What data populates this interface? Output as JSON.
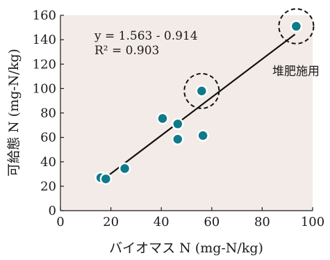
{
  "chart_data": {
    "type": "scatter",
    "title": "",
    "xlabel": "バイオマス N (mg-N/kg)",
    "ylabel": "可給態 N (mg-N/kg)",
    "xlim": [
      0,
      100
    ],
    "ylim": [
      0,
      160
    ],
    "x_ticks": [
      0,
      20,
      40,
      60,
      80,
      100
    ],
    "y_ticks": [
      0,
      20,
      40,
      60,
      80,
      100,
      120,
      140,
      160
    ],
    "grid": false,
    "plot_background": "#f3ebe8",
    "marker_color": "#0e7a8a",
    "points": [
      {
        "x": 16,
        "y": 27
      },
      {
        "x": 18,
        "y": 26
      },
      {
        "x": 25.5,
        "y": 34.5
      },
      {
        "x": 40.5,
        "y": 75.5
      },
      {
        "x": 46.5,
        "y": 71
      },
      {
        "x": 46.5,
        "y": 58.5
      },
      {
        "x": 56,
        "y": 98
      },
      {
        "x": 56.5,
        "y": 61.5
      },
      {
        "x": 93.5,
        "y": 151
      }
    ],
    "regression": {
      "equation": "y = 1.563 - 0.914",
      "r2": "R² = 0.903",
      "x_range": [
        17,
        93
      ]
    },
    "highlighted_points": [
      {
        "x": 56,
        "y": 98
      },
      {
        "x": 93.5,
        "y": 151
      }
    ],
    "annotation": "堆肥施用"
  }
}
